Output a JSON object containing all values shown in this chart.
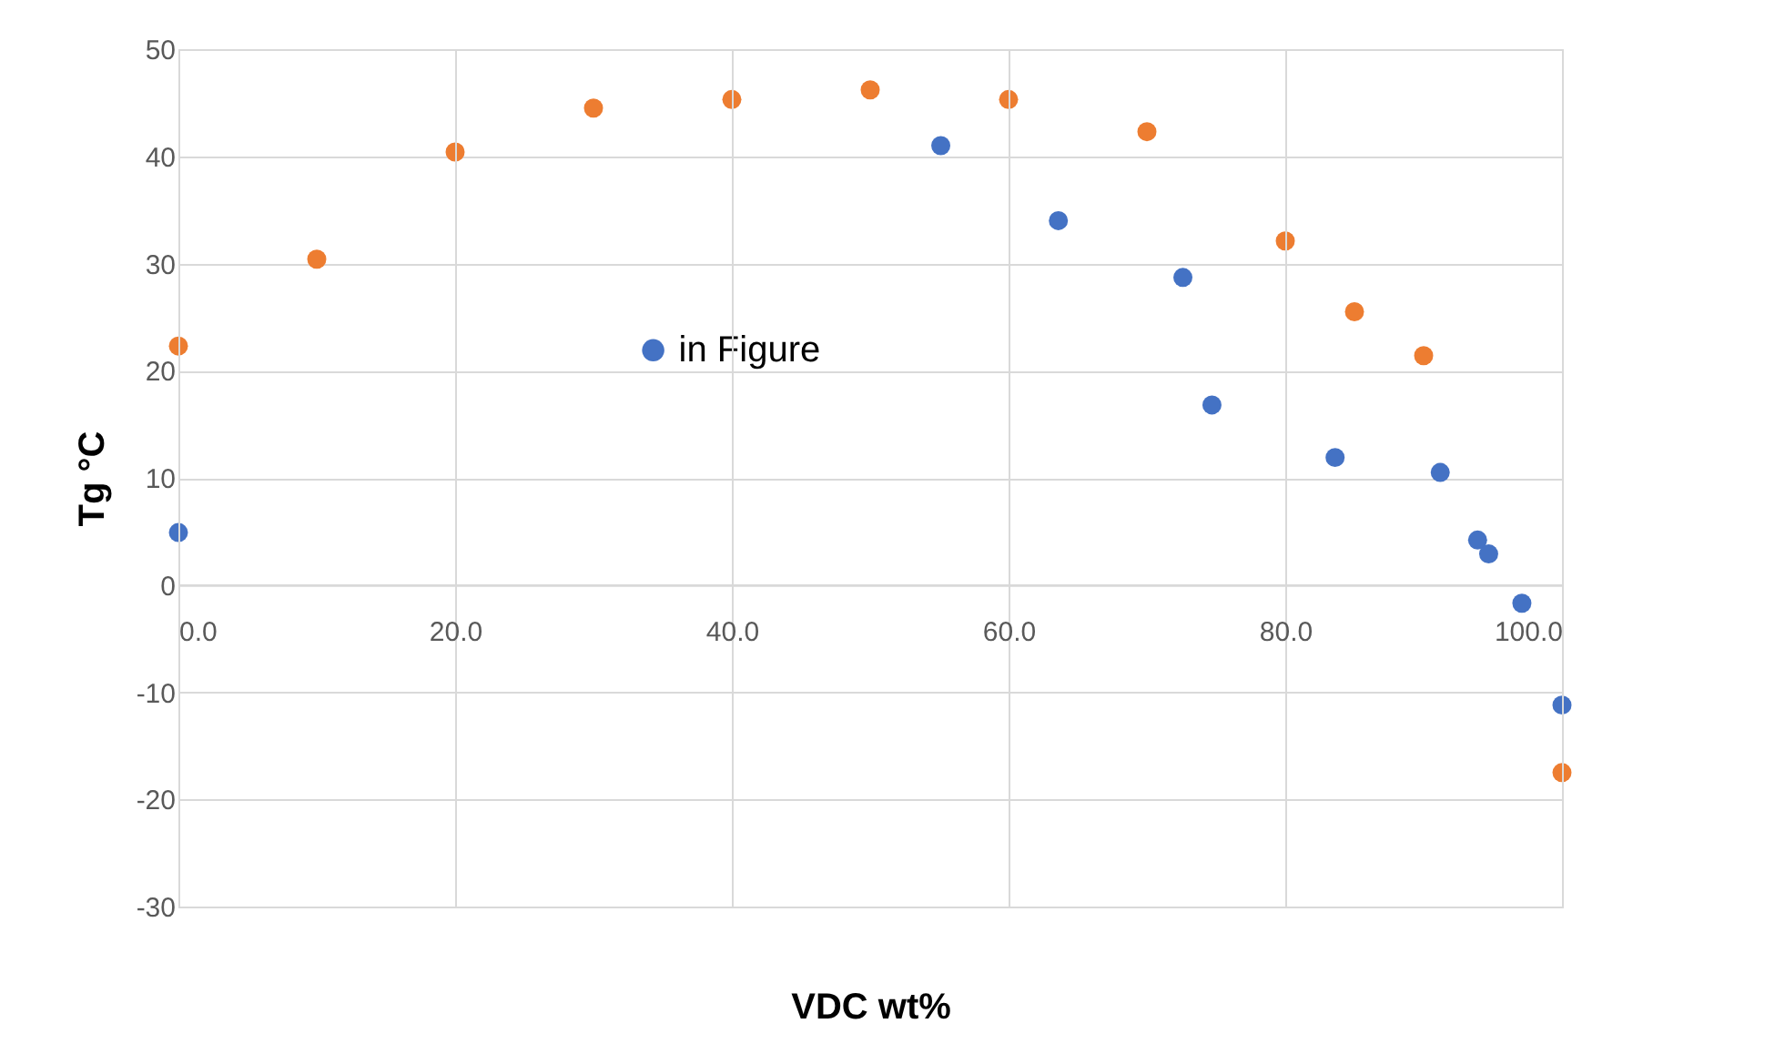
{
  "chart_data": {
    "type": "scatter",
    "xlabel": "VDC wt%",
    "ylabel": "Tg °C",
    "xlim": [
      0,
      100
    ],
    "xticks": [
      {
        "value": 0,
        "label": "0.0"
      },
      {
        "value": 20,
        "label": "20.0"
      },
      {
        "value": 40,
        "label": "40.0"
      },
      {
        "value": 60,
        "label": "60.0"
      },
      {
        "value": 80,
        "label": "80.0"
      },
      {
        "value": 100,
        "label": "100.0"
      }
    ],
    "ylim": [
      -30,
      50
    ],
    "yticks": [
      -30,
      -20,
      -10,
      0,
      10,
      20,
      30,
      40,
      50
    ],
    "grid": true,
    "legend": "center",
    "marker": "circle",
    "series": [
      {
        "name": "in Figure",
        "color": "#4472c4",
        "x": [
          0,
          55.1,
          63.6,
          72.6,
          74.7,
          83.6,
          91.2,
          93.9,
          94.7,
          97.1,
          100
        ],
        "values": [
          4.9,
          41,
          34,
          28.7,
          16.8,
          11.9,
          10.5,
          4.2,
          2.9,
          -1.7,
          -11.2
        ]
      },
      {
        "color": "#ed7d31",
        "x": [
          0,
          10,
          20,
          30,
          40,
          50,
          60,
          70,
          80,
          85,
          90,
          100
        ],
        "values": [
          22.3,
          30.4,
          40.4,
          44.5,
          45.3,
          46.2,
          45.3,
          42.3,
          32.1,
          25.5,
          21.4,
          -17.5
        ]
      }
    ]
  }
}
